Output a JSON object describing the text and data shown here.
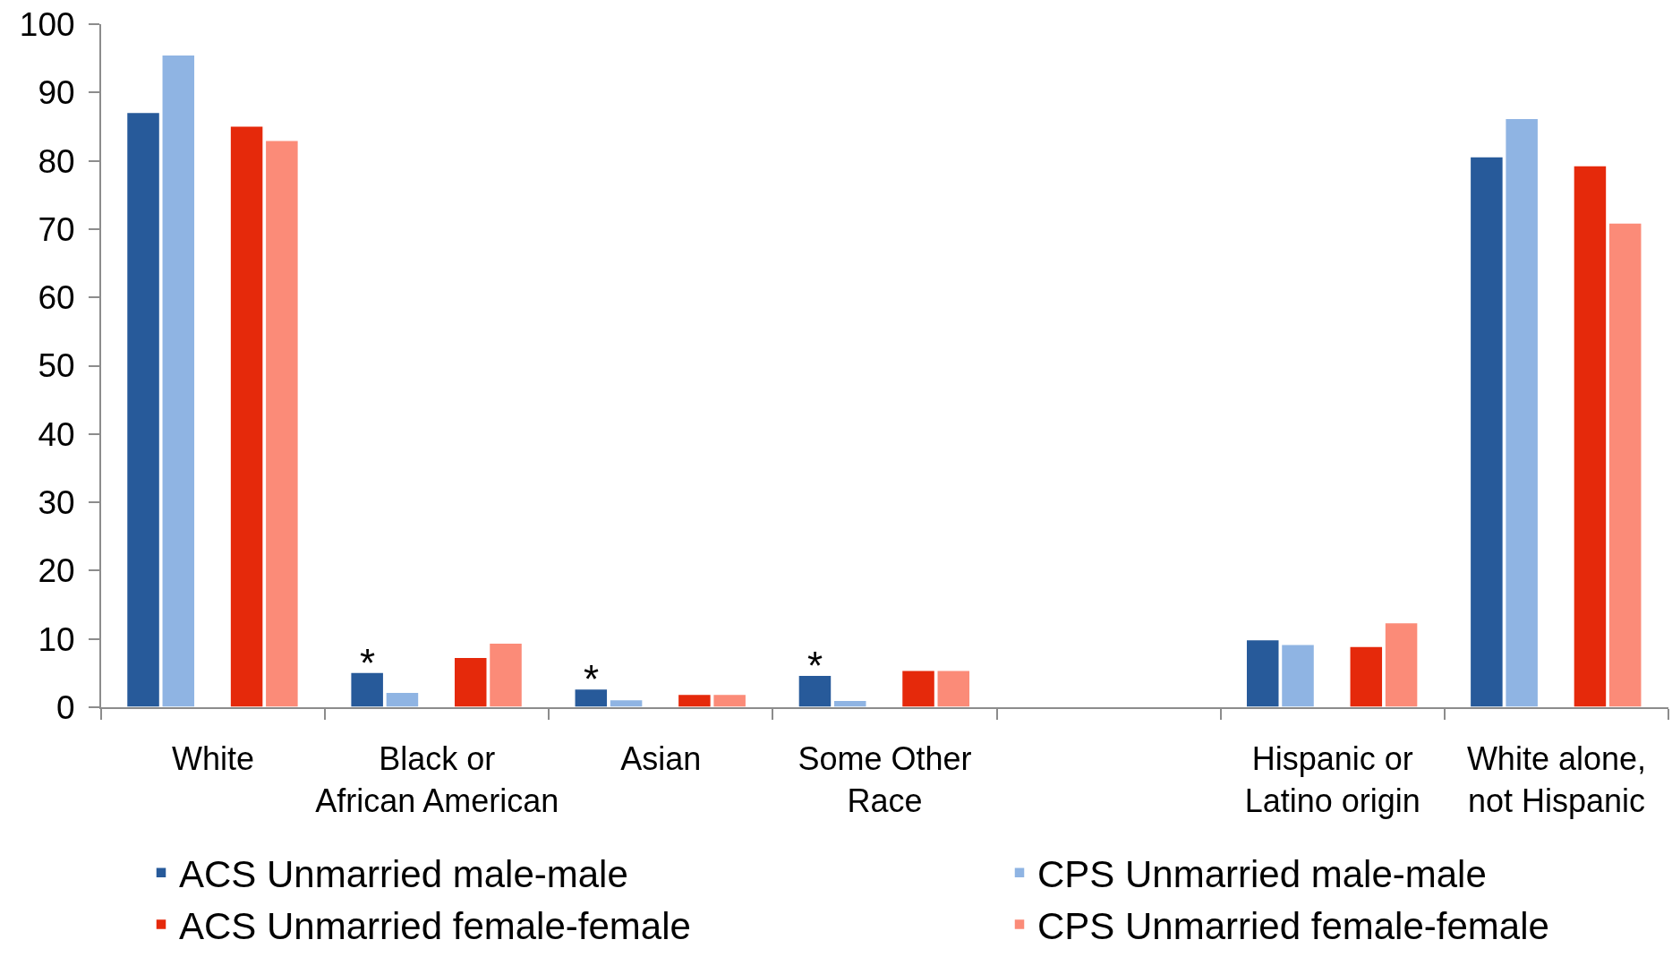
{
  "chart_data": {
    "type": "bar",
    "categories": [
      "White",
      "Black or\nAfrican American",
      "Asian",
      "Some Other\nRace",
      null,
      "Hispanic or\nLatino origin",
      "White alone,\nnot Hispanic"
    ],
    "series": [
      {
        "name": "ACS Unmarried male-male",
        "color": "#275a9a",
        "values": [
          87.1,
          5.1,
          2.7,
          4.7,
          null,
          9.9,
          80.6
        ],
        "value_labels": [
          null,
          "*",
          "*",
          "*",
          null,
          null,
          null
        ]
      },
      {
        "name": "CPS Unmarried male-male",
        "color": "#8fb4e3",
        "values": [
          95.5,
          2.2,
          1.1,
          1.0,
          null,
          9.2,
          86.2
        ]
      },
      {
        "name": "ACS Unmarried female-female",
        "color": "#e5290b",
        "values": [
          85.1,
          7.3,
          1.9,
          5.4,
          null,
          8.9,
          79.3
        ]
      },
      {
        "name": "CPS Unmarried female-female",
        "color": "#fb8b78",
        "values": [
          83.0,
          9.4,
          1.9,
          5.4,
          null,
          12.4,
          70.9
        ]
      }
    ],
    "ylim": [
      0,
      100
    ],
    "yticks": [
      0,
      10,
      20,
      30,
      40,
      50,
      60,
      70,
      80,
      90,
      100
    ],
    "grid": false,
    "legend": "bottom"
  }
}
